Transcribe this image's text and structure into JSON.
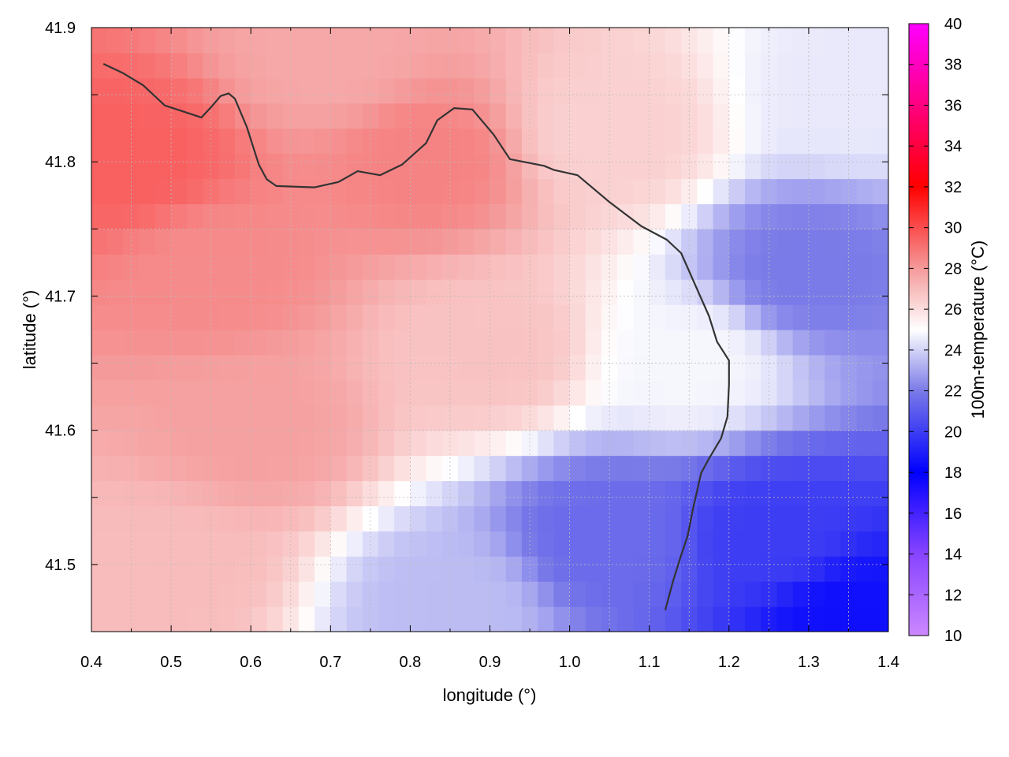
{
  "chart_data": {
    "type": "heatmap",
    "xlabel": "longitude (°)",
    "ylabel": "latitude (°)",
    "colorbar_label": "100m-temperature (°C)",
    "xlim": [
      0.4,
      1.4
    ],
    "ylim": [
      41.45,
      41.9
    ],
    "xticks": [
      "0.4",
      "0.5",
      "0.6",
      "0.7",
      "0.8",
      "0.9",
      "1.0",
      "1.1",
      "1.2",
      "1.3",
      "1.4"
    ],
    "yticks": [
      "41.5",
      "41.6",
      "41.7",
      "41.8",
      "41.9"
    ],
    "colorbar_range": [
      10,
      40
    ],
    "colorbar_ticks": [
      "10",
      "12",
      "14",
      "16",
      "18",
      "20",
      "22",
      "24",
      "26",
      "28",
      "30",
      "32",
      "34",
      "36",
      "38",
      "40"
    ],
    "colorscale": [
      {
        "value": 10,
        "color": "#cc88ff"
      },
      {
        "value": 14,
        "color": "#8844ff"
      },
      {
        "value": 18,
        "color": "#0000ff"
      },
      {
        "value": 22,
        "color": "#7a7ae8"
      },
      {
        "value": 25,
        "color": "#ffffff"
      },
      {
        "value": 28,
        "color": "#f59a9a"
      },
      {
        "value": 32,
        "color": "#ff0000"
      },
      {
        "value": 36,
        "color": "#ff0080"
      },
      {
        "value": 40,
        "color": "#ff00ff"
      }
    ],
    "field_anchors": [
      {
        "lon": 0.45,
        "lat": 41.8,
        "temp": 29.5
      },
      {
        "lon": 0.55,
        "lat": 41.72,
        "temp": 28.4
      },
      {
        "lon": 0.82,
        "lat": 41.8,
        "temp": 28.6
      },
      {
        "lon": 0.6,
        "lat": 41.6,
        "temp": 27.8
      },
      {
        "lon": 0.9,
        "lat": 41.66,
        "temp": 26.8
      },
      {
        "lon": 0.5,
        "lat": 41.5,
        "temp": 27.0
      },
      {
        "lon": 1.05,
        "lat": 41.82,
        "temp": 26.4
      },
      {
        "lon": 1.15,
        "lat": 41.65,
        "temp": 24.8
      },
      {
        "lon": 0.85,
        "lat": 41.47,
        "temp": 23.5
      },
      {
        "lon": 1.05,
        "lat": 41.52,
        "temp": 21.5
      },
      {
        "lon": 1.3,
        "lat": 41.72,
        "temp": 22.0
      },
      {
        "lon": 1.25,
        "lat": 41.52,
        "temp": 20.0
      },
      {
        "lon": 1.35,
        "lat": 41.46,
        "temp": 18.5
      },
      {
        "lon": 1.35,
        "lat": 41.85,
        "temp": 24.5
      },
      {
        "lon": 0.7,
        "lat": 41.88,
        "temp": 27.6
      }
    ],
    "contours": [
      [
        [
          0.415,
          41.873
        ],
        [
          0.44,
          41.866
        ],
        [
          0.465,
          41.857
        ],
        [
          0.492,
          41.842
        ],
        [
          0.538,
          41.833
        ],
        [
          0.552,
          41.842
        ],
        [
          0.562,
          41.849
        ],
        [
          0.572,
          41.851
        ],
        [
          0.58,
          41.847
        ],
        [
          0.595,
          41.826
        ],
        [
          0.61,
          41.798
        ],
        [
          0.62,
          41.787
        ],
        [
          0.632,
          41.782
        ],
        [
          0.68,
          41.781
        ],
        [
          0.71,
          41.785
        ],
        [
          0.734,
          41.793
        ],
        [
          0.762,
          41.79
        ],
        [
          0.79,
          41.798
        ],
        [
          0.82,
          41.814
        ],
        [
          0.834,
          41.831
        ],
        [
          0.855,
          41.84
        ],
        [
          0.878,
          41.839
        ],
        [
          0.905,
          41.82
        ],
        [
          0.925,
          41.802
        ],
        [
          0.968,
          41.797
        ],
        [
          0.98,
          41.794
        ],
        [
          1.01,
          41.79
        ],
        [
          1.05,
          41.77
        ],
        [
          1.09,
          41.752
        ],
        [
          1.122,
          41.742
        ],
        [
          1.14,
          41.732
        ],
        [
          1.16,
          41.705
        ],
        [
          1.175,
          41.685
        ],
        [
          1.185,
          41.666
        ],
        [
          1.2,
          41.652
        ],
        [
          1.2,
          41.634
        ],
        [
          1.198,
          41.61
        ],
        [
          1.19,
          41.594
        ],
        [
          1.175,
          41.579
        ],
        [
          1.165,
          41.568
        ],
        [
          1.155,
          41.542
        ],
        [
          1.148,
          41.521
        ],
        [
          1.14,
          41.507
        ],
        [
          1.13,
          41.488
        ],
        [
          1.12,
          41.466
        ]
      ]
    ]
  }
}
